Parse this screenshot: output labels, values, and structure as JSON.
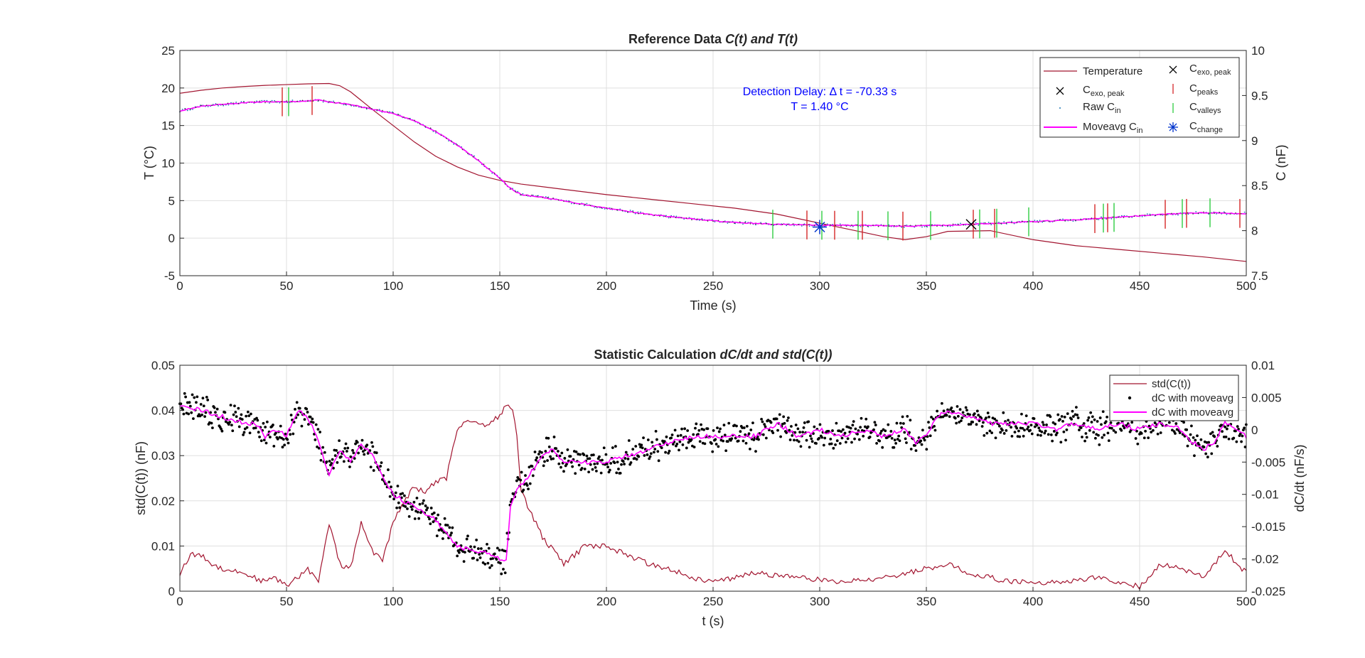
{
  "colors": {
    "temperature": "#A2142F",
    "moveavg": "#FF00FF",
    "raw": "#1F77B4",
    "peaks": "#D62728",
    "valleys": "#2ECC40",
    "change": "#0033CC",
    "annotation": "#0000FF",
    "dots": "#000000",
    "std": "#A2142F"
  },
  "chart_data": [
    {
      "type": "line",
      "title_plain": "Reference Data ",
      "title_italic": "C(t) and T(t)",
      "xlabel": "Time (s)",
      "ylabel_left": "T (°C)",
      "ylabel_right": "C (nF)",
      "xlim": [
        0,
        500
      ],
      "ylim_left": [
        -5,
        25
      ],
      "ylim_right": [
        7.5,
        10
      ],
      "xticks": [
        "0",
        "50",
        "100",
        "150",
        "200",
        "250",
        "300",
        "350",
        "400",
        "450",
        "500"
      ],
      "yticks_left": [
        "-5",
        "0",
        "5",
        "10",
        "15",
        "20",
        "25"
      ],
      "yticks_right": [
        "7.5",
        "8",
        "8.5",
        "9",
        "9.5",
        "10"
      ],
      "grid": true,
      "legend_position": "top-right",
      "annotation": [
        "Detection Delay: Δ t = -70.33 s",
        "T = 1.40 °C"
      ],
      "legend": [
        {
          "key": "temperature",
          "label": "Temperature",
          "sub": ""
        },
        {
          "key": "cexo_black",
          "label": "C",
          "sub": "exo, peak"
        },
        {
          "key": "raw",
          "label": "Raw C",
          "sub": "in"
        },
        {
          "key": "moveavg",
          "label": "Moveavg C",
          "sub": "in"
        },
        {
          "key": "cexo_black2",
          "label": "C",
          "sub": "exo, peak"
        },
        {
          "key": "peaks",
          "label": "C",
          "sub": "peaks"
        },
        {
          "key": "valleys",
          "label": "C",
          "sub": "valleys"
        },
        {
          "key": "change",
          "label": "C",
          "sub": "change"
        }
      ],
      "series": [
        {
          "name": "Temperature",
          "axis": "left",
          "x": [
            0,
            10,
            20,
            30,
            40,
            50,
            60,
            70,
            75,
            80,
            90,
            100,
            110,
            120,
            130,
            140,
            150,
            160,
            180,
            200,
            220,
            240,
            260,
            280,
            300,
            320,
            330,
            340,
            350,
            360,
            380,
            400,
            420,
            440,
            460,
            480,
            500
          ],
          "y": [
            19.3,
            19.7,
            20.0,
            20.2,
            20.35,
            20.45,
            20.55,
            20.6,
            20.3,
            19.5,
            17.2,
            15.0,
            12.8,
            10.9,
            9.5,
            8.4,
            7.7,
            7.2,
            6.5,
            5.8,
            5.2,
            4.6,
            4.0,
            3.2,
            2.0,
            0.8,
            0.2,
            -0.2,
            0.2,
            0.9,
            1.0,
            -0.2,
            -1.0,
            -1.5,
            -2.0,
            -2.5,
            -3.1
          ]
        },
        {
          "name": "Moveavg C_in",
          "axis": "right",
          "x": [
            0,
            10,
            20,
            30,
            40,
            50,
            60,
            65,
            70,
            80,
            90,
            100,
            110,
            120,
            130,
            140,
            150,
            155,
            160,
            170,
            180,
            200,
            220,
            240,
            260,
            280,
            300,
            320,
            340,
            360,
            380,
            400,
            420,
            440,
            460,
            480,
            500
          ],
          "y": [
            9.33,
            9.38,
            9.4,
            9.42,
            9.43,
            9.43,
            9.44,
            9.45,
            9.43,
            9.4,
            9.35,
            9.3,
            9.22,
            9.1,
            8.95,
            8.78,
            8.58,
            8.47,
            8.4,
            8.37,
            8.33,
            8.25,
            8.18,
            8.13,
            8.09,
            8.07,
            8.06,
            8.06,
            8.05,
            8.06,
            8.08,
            8.1,
            8.12,
            8.15,
            8.18,
            8.2,
            8.19
          ]
        }
      ],
      "peaks_x": [
        48,
        62,
        294,
        307,
        320,
        339,
        372,
        382,
        429,
        435,
        462,
        472,
        497
      ],
      "valleys_x": [
        51,
        278,
        301,
        318,
        332,
        352,
        375,
        383,
        398,
        433,
        438,
        470,
        483
      ],
      "cexo_peak": {
        "x": 371,
        "y": 8.07
      },
      "c_change": {
        "x": 300,
        "y": 8.04
      }
    },
    {
      "type": "line",
      "title_plain": "Statistic Calculation ",
      "title_italic": "dC/dt and std(C(t))",
      "xlabel": "t (s)",
      "ylabel_left": "std(C(t)) (nF)",
      "ylabel_right": "dC/dt (nF/s)",
      "xlim": [
        0,
        500
      ],
      "ylim_left": [
        0,
        0.05
      ],
      "ylim_right": [
        -0.025,
        0.01
      ],
      "xticks": [
        "0",
        "50",
        "100",
        "150",
        "200",
        "250",
        "300",
        "350",
        "400",
        "450",
        "500"
      ],
      "yticks_left": [
        "0",
        "0.01",
        "0.02",
        "0.03",
        "0.04",
        "0.05"
      ],
      "yticks_right": [
        "-0.025",
        "-0.02",
        "-0.015",
        "-0.01",
        "-0.005",
        "0",
        "0.005",
        "0.01"
      ],
      "grid": true,
      "legend_position": "top-right",
      "legend": [
        {
          "key": "std",
          "label": "std(C(t))"
        },
        {
          "key": "dots",
          "label": "dC with moveavg"
        },
        {
          "key": "moveavg",
          "label": "dC with moveavg"
        }
      ],
      "series": [
        {
          "name": "std(C(t))",
          "axis": "left",
          "x": [
            0,
            5,
            10,
            15,
            20,
            30,
            35,
            40,
            45,
            50,
            55,
            60,
            65,
            70,
            75,
            80,
            85,
            90,
            95,
            100,
            105,
            110,
            115,
            120,
            125,
            130,
            135,
            140,
            145,
            150,
            153,
            156,
            158,
            160,
            165,
            170,
            180,
            190,
            200,
            210,
            220,
            230,
            240,
            250,
            270,
            290,
            310,
            330,
            350,
            360,
            370,
            390,
            410,
            430,
            450,
            460,
            470,
            480,
            490,
            500
          ],
          "y": [
            0.004,
            0.008,
            0.008,
            0.006,
            0.005,
            0.004,
            0.003,
            0.002,
            0.003,
            0.001,
            0.003,
            0.005,
            0.002,
            0.015,
            0.006,
            0.005,
            0.015,
            0.009,
            0.007,
            0.015,
            0.02,
            0.023,
            0.022,
            0.024,
            0.025,
            0.036,
            0.038,
            0.037,
            0.037,
            0.039,
            0.041,
            0.04,
            0.035,
            0.022,
            0.017,
            0.012,
            0.006,
            0.01,
            0.01,
            0.008,
            0.006,
            0.005,
            0.003,
            0.002,
            0.004,
            0.003,
            0.002,
            0.003,
            0.005,
            0.006,
            0.004,
            0.002,
            0.002,
            0.003,
            0.001,
            0.006,
            0.005,
            0.003,
            0.009,
            0.004
          ]
        },
        {
          "name": "dC with moveavg",
          "axis": "right",
          "x": [
            0,
            10,
            20,
            30,
            35,
            40,
            45,
            50,
            55,
            60,
            65,
            70,
            75,
            80,
            85,
            90,
            95,
            100,
            105,
            110,
            120,
            130,
            140,
            145,
            150,
            153,
            155,
            158,
            162,
            166,
            170,
            175,
            180,
            190,
            200,
            210,
            220,
            230,
            240,
            250,
            260,
            270,
            280,
            290,
            300,
            310,
            320,
            330,
            340,
            345,
            350,
            355,
            360,
            370,
            380,
            390,
            400,
            410,
            420,
            430,
            440,
            450,
            460,
            470,
            475,
            480,
            485,
            490,
            500
          ],
          "y": [
            0.004,
            0.003,
            0.002,
            0.001,
            0.001,
            -0.001,
            0.0,
            -0.001,
            0.003,
            0.002,
            -0.002,
            -0.007,
            -0.003,
            -0.005,
            -0.002,
            -0.004,
            -0.007,
            -0.01,
            -0.011,
            -0.012,
            -0.014,
            -0.018,
            -0.019,
            -0.019,
            -0.02,
            -0.02,
            -0.012,
            -0.009,
            -0.008,
            -0.006,
            -0.004,
            -0.003,
            -0.005,
            -0.005,
            -0.005,
            -0.004,
            -0.003,
            -0.002,
            -0.001,
            -0.001,
            -0.001,
            -0.001,
            0.001,
            -0.001,
            0.0,
            -0.001,
            0.0,
            -0.001,
            0.0,
            -0.002,
            -0.001,
            0.002,
            0.003,
            0.002,
            0.001,
            0.001,
            0.001,
            0.0,
            0.001,
            0.0,
            0.001,
            0.0,
            0.001,
            0.0,
            -0.002,
            -0.003,
            -0.002,
            0.001,
            -0.001
          ]
        }
      ]
    }
  ]
}
